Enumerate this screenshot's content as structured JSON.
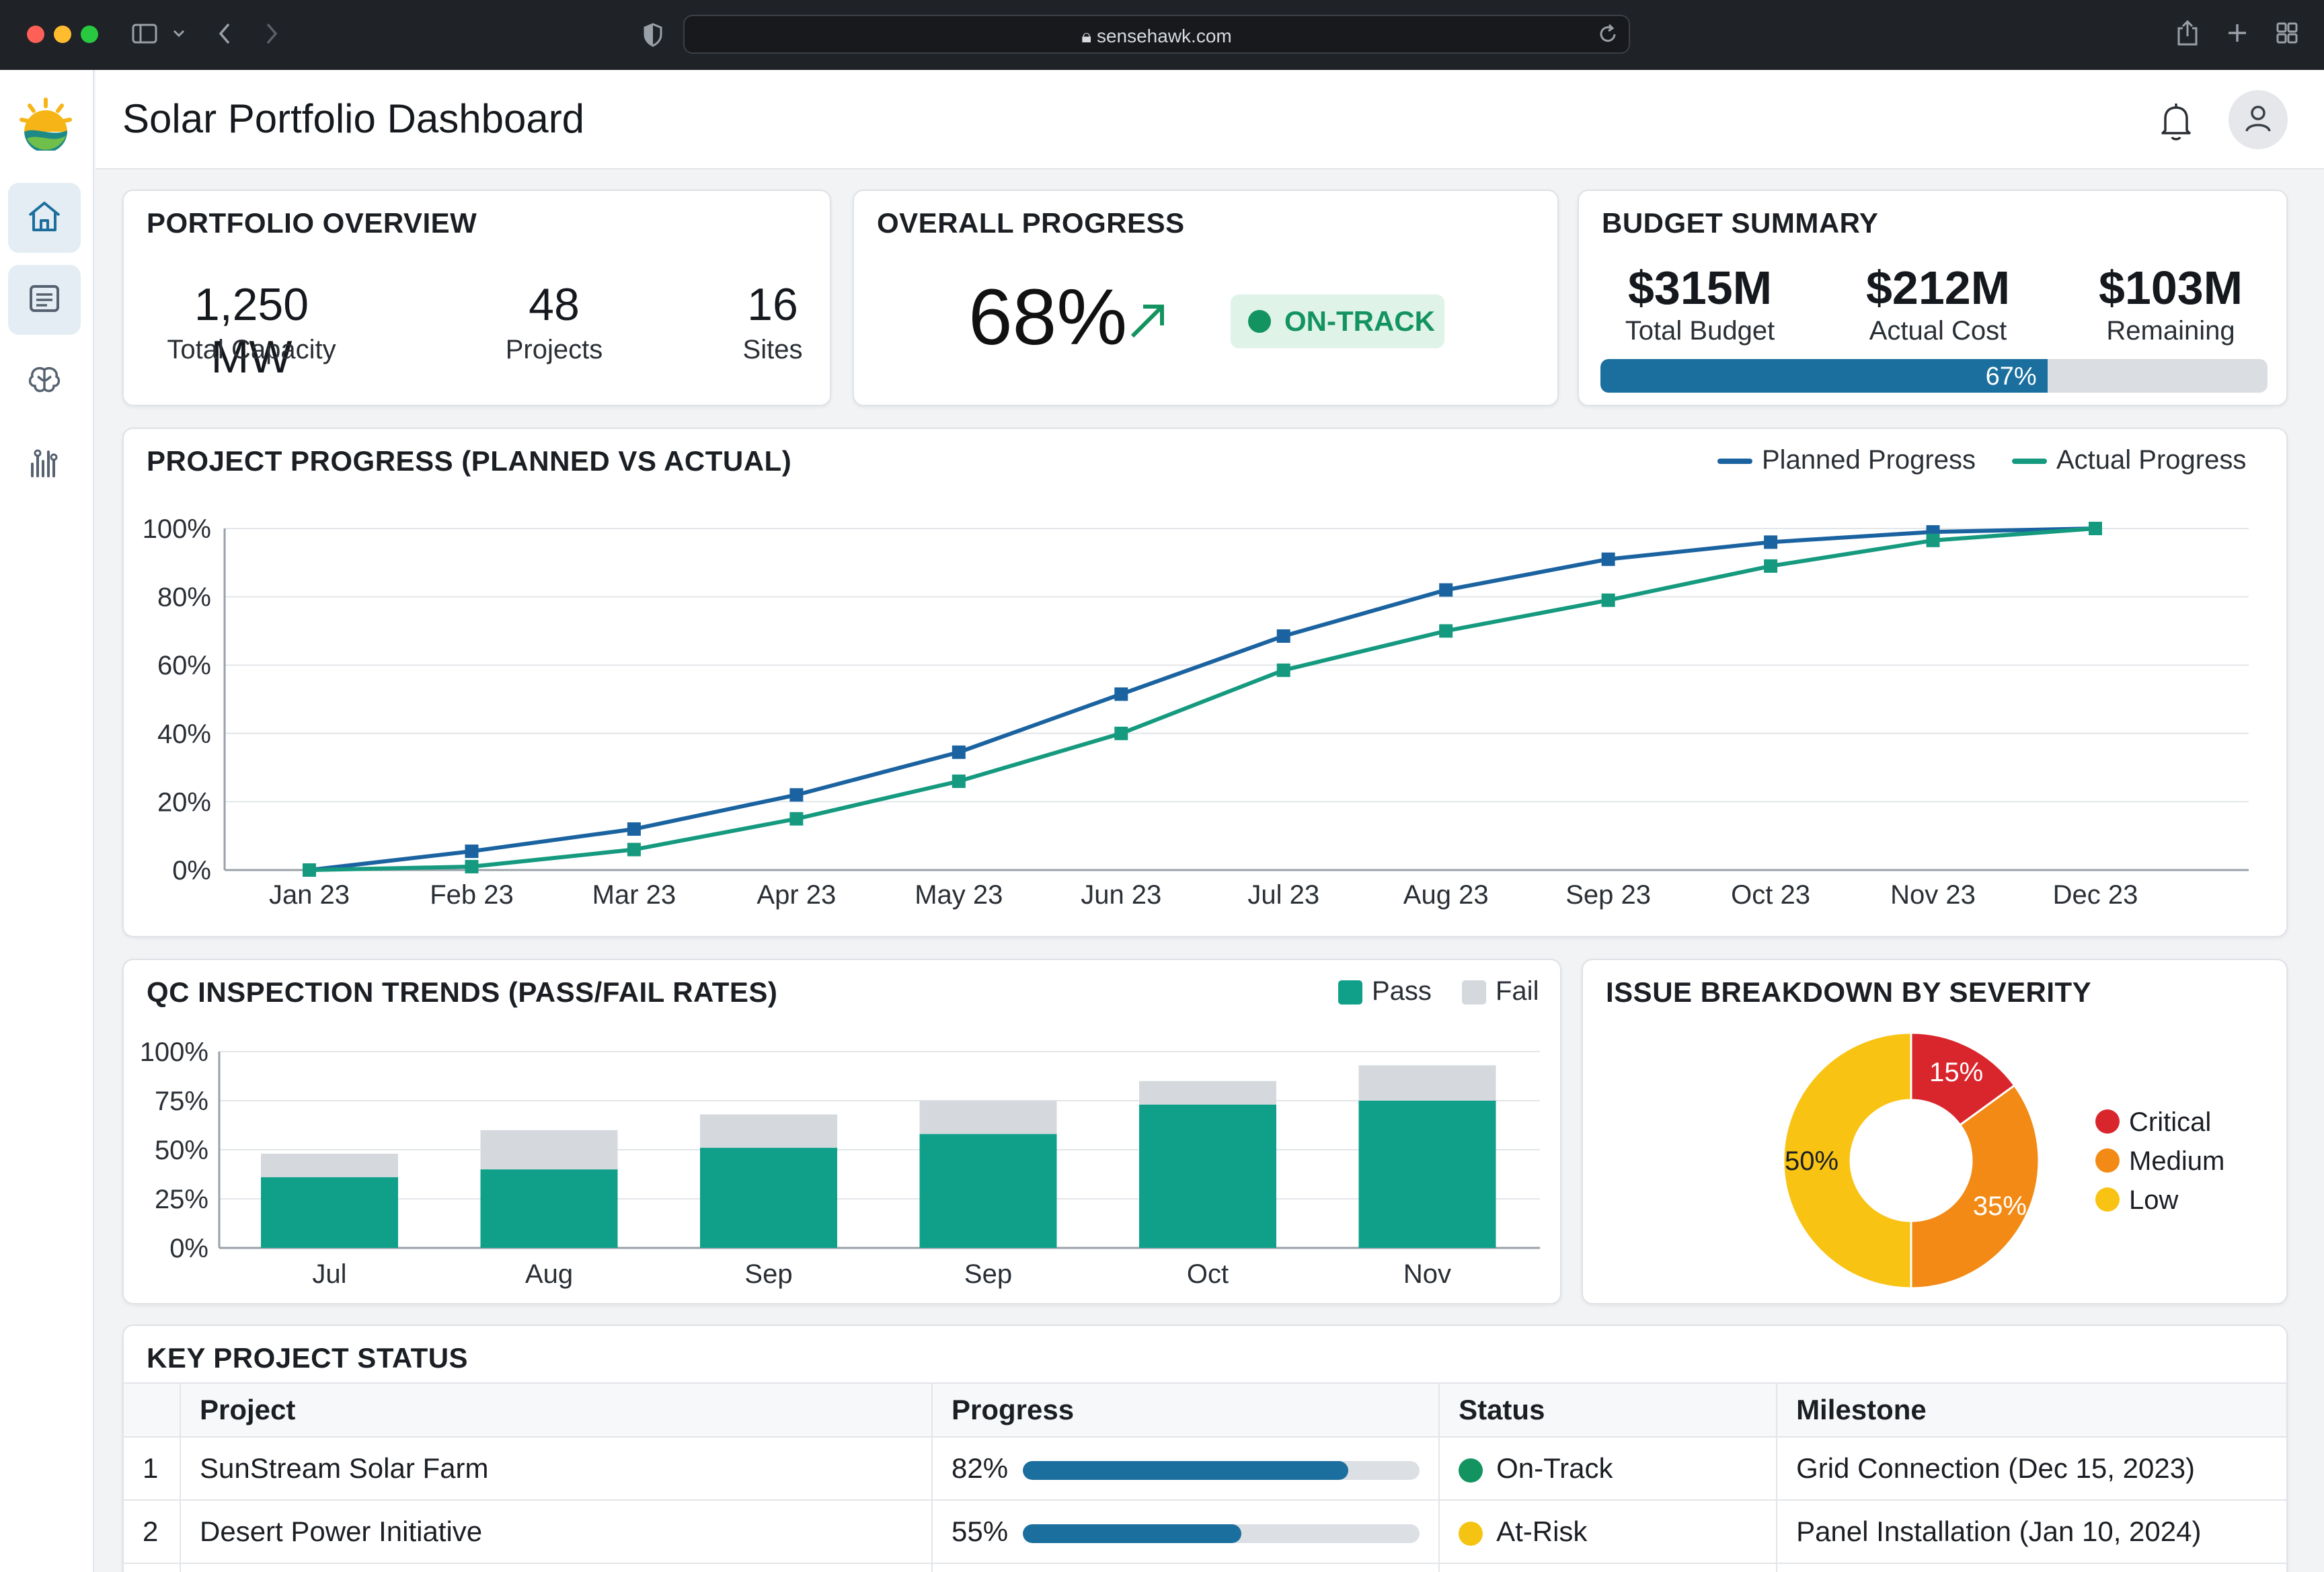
{
  "browser": {
    "url": "sensehawk.com"
  },
  "header": {
    "title": "Solar Portfolio Dashboard"
  },
  "sidebar": {
    "items": [
      {
        "icon": "home-icon"
      },
      {
        "icon": "list-icon"
      },
      {
        "icon": "brain-icon"
      },
      {
        "icon": "analytics-icon"
      }
    ]
  },
  "portfolio": {
    "title": "PORTFOLIO OVERVIEW",
    "capacity": "1,250 MW",
    "capacity_label": "Total Capacity",
    "projects": "48",
    "projects_label": "Projects",
    "sites": "16",
    "sites_label": "Sites"
  },
  "progress": {
    "title": "OVERALL PROGRESS",
    "value": "68%",
    "status": "ON-TRACK",
    "colors": {
      "status": "#13935f"
    }
  },
  "budget": {
    "title": "BUDGET SUMMARY",
    "total": "$315M",
    "total_label": "Total Budget",
    "actual": "$212M",
    "actual_label": "Actual Cost",
    "remaining": "$103M",
    "remaining_label": "Remaining",
    "used_label": "67%",
    "used_fraction": 0.67
  },
  "charts": {
    "progress_title": "PROJECT PROGRESS (PLANNED VS ACTUAL)",
    "qc_title": "QC INSPECTION TRENDS (PASS/FAIL RATES)",
    "issue_title": "ISSUE BREAKDOWN BY SEVERITY"
  },
  "chart_data": [
    {
      "type": "line",
      "title": "PROJECT PROGRESS (PLANNED VS ACTUAL)",
      "categories": [
        "Jan 23",
        "Feb 23",
        "Mar 23",
        "Apr 23",
        "May 23",
        "Jun 23",
        "Jul 23",
        "Aug 23",
        "Sep 23",
        "Oct 23",
        "Nov 23",
        "Dec 23"
      ],
      "yticks": [
        "0%",
        "20%",
        "40%",
        "60%",
        "80%",
        "100%"
      ],
      "ylim": [
        0,
        100
      ],
      "legend": "top-right",
      "series": [
        {
          "name": "Planned Progress",
          "color": "#1b63a0",
          "values": [
            0,
            5.5,
            12,
            22,
            34.5,
            51.5,
            68.5,
            82,
            91,
            96,
            99,
            100
          ]
        },
        {
          "name": "Actual Progress",
          "color": "#159a7f",
          "values": [
            0,
            1,
            6,
            15,
            26,
            40,
            58.5,
            70,
            79,
            89,
            96.5,
            100
          ]
        }
      ]
    },
    {
      "type": "bar",
      "title": "QC INSPECTION TRENDS (PASS/FAIL RATES)",
      "categories": [
        "Jul",
        "Aug",
        "Sep",
        "Sep",
        "Oct",
        "Nov"
      ],
      "yticks": [
        "0%",
        "25%",
        "50%",
        "75%",
        "100%"
      ],
      "ylim": [
        0,
        100
      ],
      "legend": "top-right",
      "series": [
        {
          "name": "Pass",
          "color": "#10a08a",
          "values": [
            36,
            40,
            51,
            58,
            73,
            75
          ]
        },
        {
          "name": "Fail",
          "color": "#d5d9de",
          "values": [
            12,
            20,
            17,
            17,
            12,
            18
          ]
        }
      ]
    },
    {
      "type": "pie",
      "title": "ISSUE BREAKDOWN BY SEVERITY",
      "legend": "right",
      "categories": [
        "Critical",
        "Medium",
        "Low"
      ],
      "values": [
        15,
        35,
        50
      ],
      "labels": [
        "15%",
        "35%",
        "50%"
      ],
      "colors": [
        "#d9262c",
        "#f28a15",
        "#f8c312"
      ]
    }
  ],
  "table": {
    "title": "KEY PROJECT STATUS",
    "columns": [
      "",
      "Project",
      "Progress",
      "Status",
      "Milestone"
    ],
    "rows": [
      {
        "num": "1",
        "project": "SunStream Solar Farm",
        "progress": "82%",
        "progress_value": 0.82,
        "status": "On-Track",
        "status_color": "#13935f",
        "milestone": "Grid Connection (Dec 15, 2023)"
      },
      {
        "num": "2",
        "project": "Desert Power Initiative",
        "progress": "55%",
        "progress_value": 0.55,
        "status": "At-Risk",
        "status_color": "#f5c412",
        "milestone": "Panel Installation (Jan 10, 2024)"
      }
    ]
  }
}
